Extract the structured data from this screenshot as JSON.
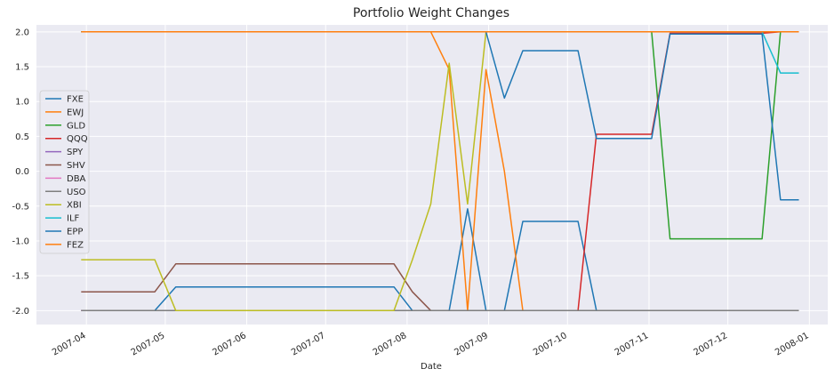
{
  "chart_data": {
    "type": "line",
    "title": "Portfolio Weight Changes",
    "xlabel": "Date",
    "ylabel": "",
    "x_ticks": [
      "2007-04",
      "2007-05",
      "2007-06",
      "2007-07",
      "2007-08",
      "2007-09",
      "2007-10",
      "2007-11",
      "2007-12",
      "2008-01"
    ],
    "y_ticks": [
      "2.0",
      "1.5",
      "1.0",
      "0.5",
      "0.0",
      "-0.5",
      "-1.0",
      "-1.5",
      "-2.0"
    ],
    "xlim": [
      "2007-03-13",
      "2008-01-08"
    ],
    "ylim": [
      -2.2,
      2.1
    ],
    "grid": true,
    "legend_position": "left",
    "x": [
      "2007-03-30",
      "2007-04-27",
      "2007-05-05",
      "2007-07-27",
      "2007-08-03",
      "2007-08-10",
      "2007-08-17",
      "2007-08-24",
      "2007-08-31",
      "2007-09-07",
      "2007-09-14",
      "2007-09-21",
      "2007-09-28",
      "2007-10-05",
      "2007-10-12",
      "2007-10-19",
      "2007-10-26",
      "2007-11-02",
      "2007-11-09",
      "2007-11-16",
      "2007-11-23",
      "2007-11-30",
      "2007-12-07",
      "2007-12-14",
      "2007-12-21",
      "2007-12-28"
    ],
    "series": [
      {
        "name": "FXE",
        "color": "#1f77b4",
        "values": [
          -2.0,
          -2.0,
          -1.66,
          -1.66,
          -2.0,
          -2.0,
          -2.0,
          -0.54,
          -2.0,
          -2.0,
          -0.72,
          -0.72,
          -0.72,
          -0.72,
          -2.0,
          -2.0,
          -2.0,
          -2.0,
          -2.0,
          -2.0,
          -2.0,
          -2.0,
          -2.0,
          -2.0,
          -2.0,
          -2.0
        ]
      },
      {
        "name": "EWJ",
        "color": "#ff7f0e",
        "values": [
          2.0,
          2.0,
          2.0,
          2.0,
          2.0,
          2.0,
          1.46,
          -2.0,
          1.46,
          0.0,
          -2.0,
          -2.0,
          -2.0,
          -2.0,
          -2.0,
          -2.0,
          -2.0,
          -2.0,
          -2.0,
          -2.0,
          -2.0,
          -2.0,
          -2.0,
          -2.0,
          -2.0,
          -2.0
        ]
      },
      {
        "name": "GLD",
        "color": "#2ca02c",
        "values": [
          2.0,
          2.0,
          2.0,
          2.0,
          2.0,
          2.0,
          2.0,
          2.0,
          2.0,
          2.0,
          2.0,
          2.0,
          2.0,
          2.0,
          2.0,
          2.0,
          2.0,
          2.0,
          -0.97,
          -0.97,
          -0.97,
          -0.97,
          -0.97,
          -0.97,
          2.0,
          2.0
        ]
      },
      {
        "name": "QQQ",
        "color": "#d62728",
        "values": [
          -2.0,
          -2.0,
          -2.0,
          -2.0,
          -2.0,
          -2.0,
          -2.0,
          -2.0,
          -2.0,
          -2.0,
          -2.0,
          -2.0,
          -2.0,
          -2.0,
          0.53,
          0.53,
          0.53,
          0.53,
          1.98,
          1.98,
          1.98,
          1.98,
          1.98,
          1.98,
          2.0,
          2.0
        ]
      },
      {
        "name": "SPY",
        "color": "#9467bd",
        "values": [
          -2.0,
          -2.0,
          -2.0,
          -2.0,
          -2.0,
          -2.0,
          -2.0,
          -2.0,
          -2.0,
          -2.0,
          -2.0,
          -2.0,
          -2.0,
          -2.0,
          -2.0,
          -2.0,
          -2.0,
          -2.0,
          -2.0,
          -2.0,
          -2.0,
          -2.0,
          -2.0,
          -2.0,
          -2.0,
          -2.0
        ]
      },
      {
        "name": "SHV",
        "color": "#8c564b",
        "values": [
          -1.73,
          -1.73,
          -1.33,
          -1.33,
          -1.73,
          -2.0,
          -2.0,
          -2.0,
          -2.0,
          -2.0,
          -2.0,
          -2.0,
          -2.0,
          -2.0,
          -2.0,
          -2.0,
          -2.0,
          -2.0,
          -2.0,
          -2.0,
          -2.0,
          -2.0,
          -2.0,
          -2.0,
          -2.0,
          -2.0
        ]
      },
      {
        "name": "DBA",
        "color": "#e377c2",
        "values": [
          -2.0,
          -2.0,
          -2.0,
          -2.0,
          -2.0,
          -2.0,
          -2.0,
          -2.0,
          -2.0,
          -2.0,
          -2.0,
          -2.0,
          -2.0,
          -2.0,
          -2.0,
          -2.0,
          -2.0,
          -2.0,
          -2.0,
          -2.0,
          -2.0,
          -2.0,
          -2.0,
          -2.0,
          -2.0,
          -2.0
        ]
      },
      {
        "name": "USO",
        "color": "#7f7f7f",
        "values": [
          -2.0,
          -2.0,
          -2.0,
          -2.0,
          -2.0,
          -2.0,
          -2.0,
          -2.0,
          -2.0,
          -2.0,
          -2.0,
          -2.0,
          -2.0,
          -2.0,
          -2.0,
          -2.0,
          -2.0,
          -2.0,
          -2.0,
          -2.0,
          -2.0,
          -2.0,
          -2.0,
          -2.0,
          -2.0,
          -2.0
        ]
      },
      {
        "name": "XBI",
        "color": "#bcbd22",
        "values": [
          -1.27,
          -1.27,
          -2.0,
          -2.0,
          -1.27,
          -0.47,
          1.55,
          -0.47,
          2.0,
          2.0,
          2.0,
          2.0,
          2.0,
          2.0,
          2.0,
          2.0,
          2.0,
          2.0,
          2.0,
          2.0,
          2.0,
          2.0,
          2.0,
          2.0,
          2.0,
          2.0
        ]
      },
      {
        "name": "ILF",
        "color": "#17becf",
        "values": [
          2.0,
          2.0,
          2.0,
          2.0,
          2.0,
          2.0,
          2.0,
          2.0,
          2.0,
          2.0,
          2.0,
          2.0,
          2.0,
          2.0,
          2.0,
          2.0,
          2.0,
          2.0,
          2.0,
          2.0,
          2.0,
          2.0,
          2.0,
          2.0,
          1.41,
          1.41
        ]
      },
      {
        "name": "EPP",
        "color": "#1f77b4",
        "values": [
          2.0,
          2.0,
          2.0,
          2.0,
          2.0,
          2.0,
          2.0,
          2.0,
          2.0,
          1.05,
          1.73,
          1.73,
          1.73,
          1.73,
          0.47,
          0.47,
          0.47,
          0.47,
          1.97,
          1.97,
          1.97,
          1.97,
          1.97,
          1.97,
          -0.41,
          -0.41
        ]
      },
      {
        "name": "FEZ",
        "color": "#ff7f0e",
        "values": [
          2.0,
          2.0,
          2.0,
          2.0,
          2.0,
          2.0,
          2.0,
          2.0,
          2.0,
          2.0,
          2.0,
          2.0,
          2.0,
          2.0,
          2.0,
          2.0,
          2.0,
          2.0,
          2.0,
          2.0,
          2.0,
          2.0,
          2.0,
          2.0,
          2.0,
          2.0
        ]
      }
    ]
  }
}
